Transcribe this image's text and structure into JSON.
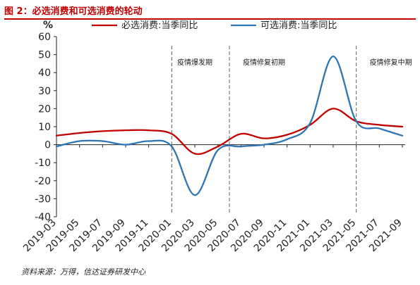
{
  "figure": {
    "title": "图 2：必选消费和可选消费的轮动",
    "source": "资料来源：万得，信达证券研发中心"
  },
  "chart_data": {
    "type": "line",
    "title": "",
    "xlabel": "",
    "ylabel": "%",
    "ylim": [
      -40,
      60
    ],
    "y_ticks": [
      60,
      50,
      40,
      30,
      20,
      10,
      0,
      -10,
      -20,
      -30,
      -40
    ],
    "grid": false,
    "legend_position": "top",
    "x": [
      "2019-03",
      "2019-05",
      "2019-07",
      "2019-09",
      "2019-11",
      "2020-01",
      "2020-03",
      "2020-05",
      "2020-07",
      "2020-09",
      "2020-11",
      "2021-01",
      "2021-03",
      "2021-05",
      "2021-07",
      "2021-09"
    ],
    "series": [
      {
        "name": "必选消费:当季同比",
        "color": "#c00000",
        "values": [
          5,
          6.5,
          7.5,
          8,
          8,
          6,
          -5,
          -1,
          6,
          3.5,
          5.5,
          11,
          20,
          13,
          11,
          10
        ]
      },
      {
        "name": "可选消费:当季同比",
        "color": "#2e75b6",
        "values": [
          -1,
          2,
          2,
          0,
          2,
          -1,
          -28,
          -3,
          -1,
          0,
          3,
          12,
          49,
          13,
          9,
          5
        ]
      }
    ],
    "phase_dividers": [
      "2020-01",
      "2020-06",
      "2021-05"
    ],
    "phase_labels": [
      {
        "text": "疫情爆发期",
        "anchor": "2020-03"
      },
      {
        "text": "疫情修复初期",
        "anchor": "2020-09"
      },
      {
        "text": "疫情修复中期",
        "anchor": "2021-08"
      }
    ]
  }
}
